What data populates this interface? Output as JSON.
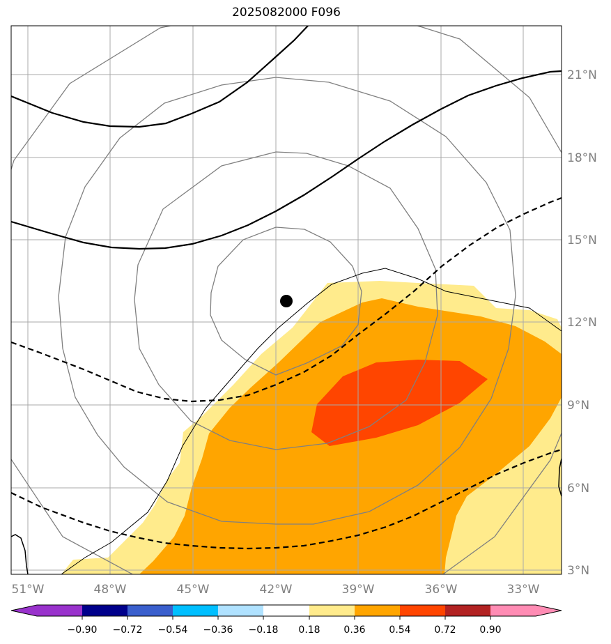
{
  "title": "2025082000 F096",
  "map": {
    "lon_labels": [
      "51°W",
      "48°W",
      "45°W",
      "42°W",
      "39°W",
      "36°W",
      "33°W"
    ],
    "lat_labels": [
      "21°N",
      "18°N",
      "15°N",
      "12°N",
      "9°N",
      "6°N",
      "3°N"
    ],
    "storm_center": {
      "lon": -41.6,
      "lat": 12.8
    },
    "fill_colors": {
      "c018_036": "#ffeb8c",
      "c036_054": "#ffa500",
      "c054_072": "#ff4500"
    }
  },
  "colorbar": {
    "tick_labels": [
      "−0.90",
      "−0.72",
      "−0.54",
      "−0.36",
      "−0.18",
      "0.18",
      "0.36",
      "0.54",
      "0.72",
      "0.90"
    ],
    "colors": [
      "#9932cc",
      "#00008b",
      "#3a5fcd",
      "#00bfff",
      "#b0e2ff",
      "#ffffff",
      "#ffeb8c",
      "#ffa500",
      "#ff4500",
      "#b22222",
      "#ff8cb4"
    ]
  }
}
